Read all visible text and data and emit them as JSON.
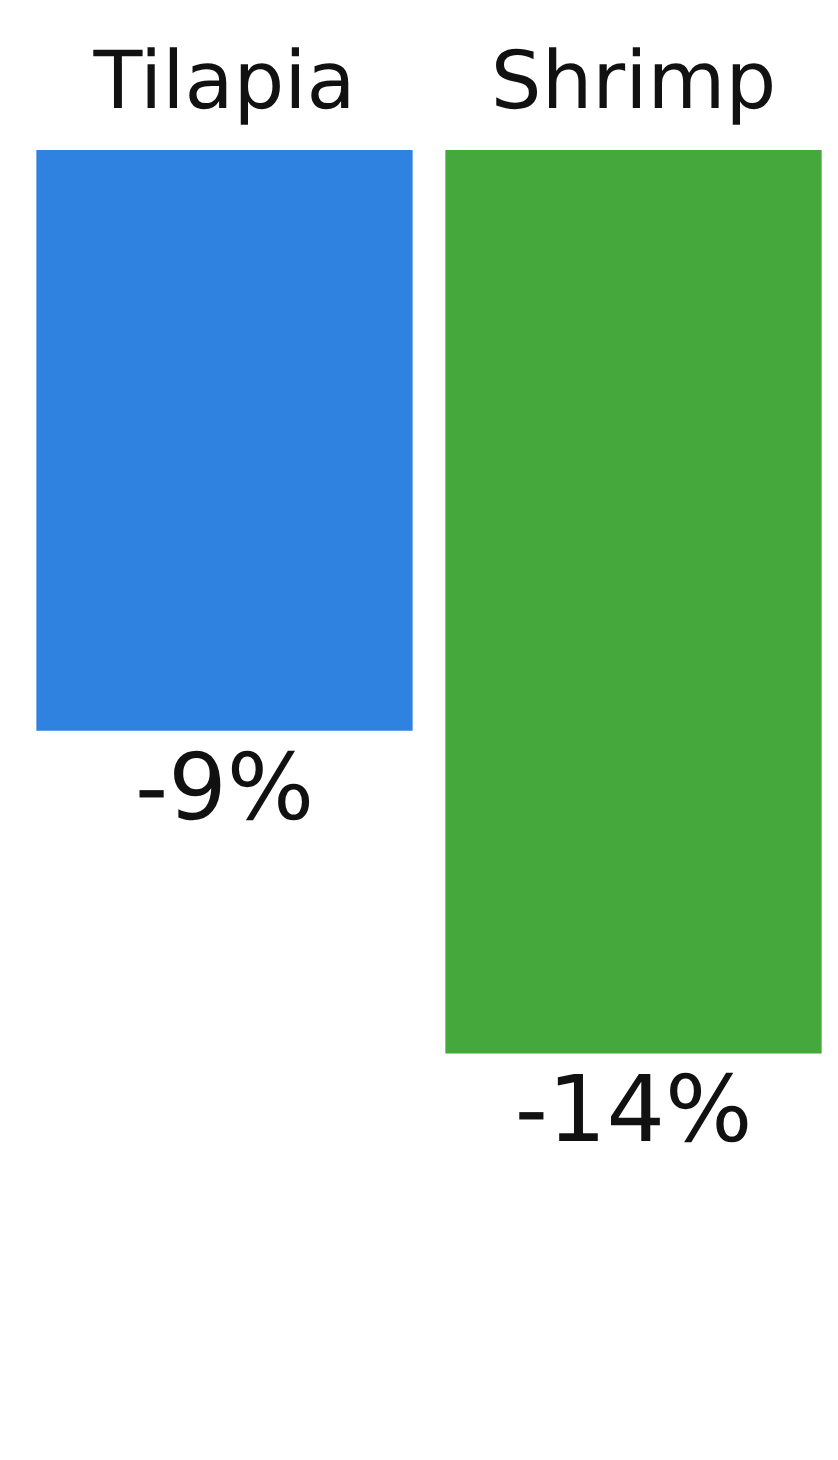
{
  "chart_data": {
    "type": "bar",
    "categories": [
      "Tilapia",
      "Shrimp"
    ],
    "values": [
      -9,
      -14
    ],
    "colors": [
      "#2f82e0",
      "#45a83c"
    ],
    "value_labels": [
      "-9%",
      "-14%"
    ]
  }
}
